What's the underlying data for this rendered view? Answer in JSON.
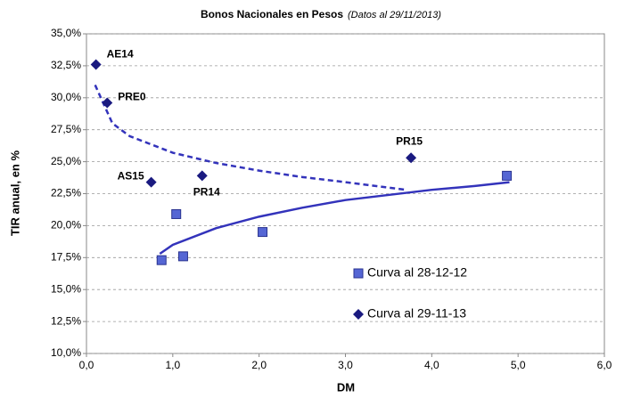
{
  "chart_data": {
    "type": "scatter",
    "title": "Bonos Nacionales en Pesos",
    "subtitle": "(Datos al 29/11/2013)",
    "x_label": "DM",
    "y_label": "TIR anual, en %",
    "xlim": [
      0,
      6
    ],
    "ylim": [
      10,
      35
    ],
    "xticks": [
      {
        "value": 0,
        "label": "0,0"
      },
      {
        "value": 1,
        "label": "1,0"
      },
      {
        "value": 2,
        "label": "2,0"
      },
      {
        "value": 3,
        "label": "3,0"
      },
      {
        "value": 4,
        "label": "4,0"
      },
      {
        "value": 5,
        "label": "5,0"
      },
      {
        "value": 6,
        "label": "6,0"
      }
    ],
    "yticks": [
      {
        "value": 10,
        "label": "10,0%"
      },
      {
        "value": 12.5,
        "label": "12,5%"
      },
      {
        "value": 15,
        "label": "15,0%"
      },
      {
        "value": 17.5,
        "label": "17,5%"
      },
      {
        "value": 20,
        "label": "20,0%"
      },
      {
        "value": 22.5,
        "label": "22,5%"
      },
      {
        "value": 25,
        "label": "25,0%"
      },
      {
        "value": 27.5,
        "label": "27,5%"
      },
      {
        "value": 30,
        "label": "30,0%"
      },
      {
        "value": 32.5,
        "label": "32,5%"
      },
      {
        "value": 35,
        "label": "35,0%"
      }
    ],
    "grid": true,
    "series": [
      {
        "name": "Curva al 28-12-12",
        "color": "#5566d4",
        "marker": "square",
        "x": [
          0.87,
          1.04,
          1.12,
          2.04,
          4.87
        ],
        "y": [
          17.3,
          20.9,
          17.6,
          19.5,
          23.9
        ],
        "trend": {
          "style": "solid",
          "color": "#3333bb",
          "x": [
            0.85,
            1,
            1.5,
            2,
            2.5,
            3,
            3.5,
            4,
            4.5,
            4.9
          ],
          "y": [
            17.8,
            18.5,
            19.8,
            20.7,
            21.4,
            22,
            22.4,
            22.8,
            23.1,
            23.4
          ]
        }
      },
      {
        "name": "Curva al 29-11-13",
        "color": "#1a1a80",
        "marker": "diamond",
        "x": [
          0.11,
          0.24,
          0.75,
          1.34,
          3.76
        ],
        "y": [
          32.6,
          29.6,
          23.4,
          23.9,
          25.3
        ],
        "point_labels": [
          "AE14",
          "PRE0",
          "AS15",
          "PR14",
          "PR15"
        ],
        "trend": {
          "style": "dashed",
          "color": "#3333bb",
          "x": [
            0.1,
            0.3,
            0.5,
            1,
            1.5,
            2,
            2.5,
            3,
            3.7
          ],
          "y": [
            31,
            28,
            27,
            25.7,
            24.9,
            24.3,
            23.8,
            23.4,
            22.8
          ]
        }
      }
    ]
  }
}
